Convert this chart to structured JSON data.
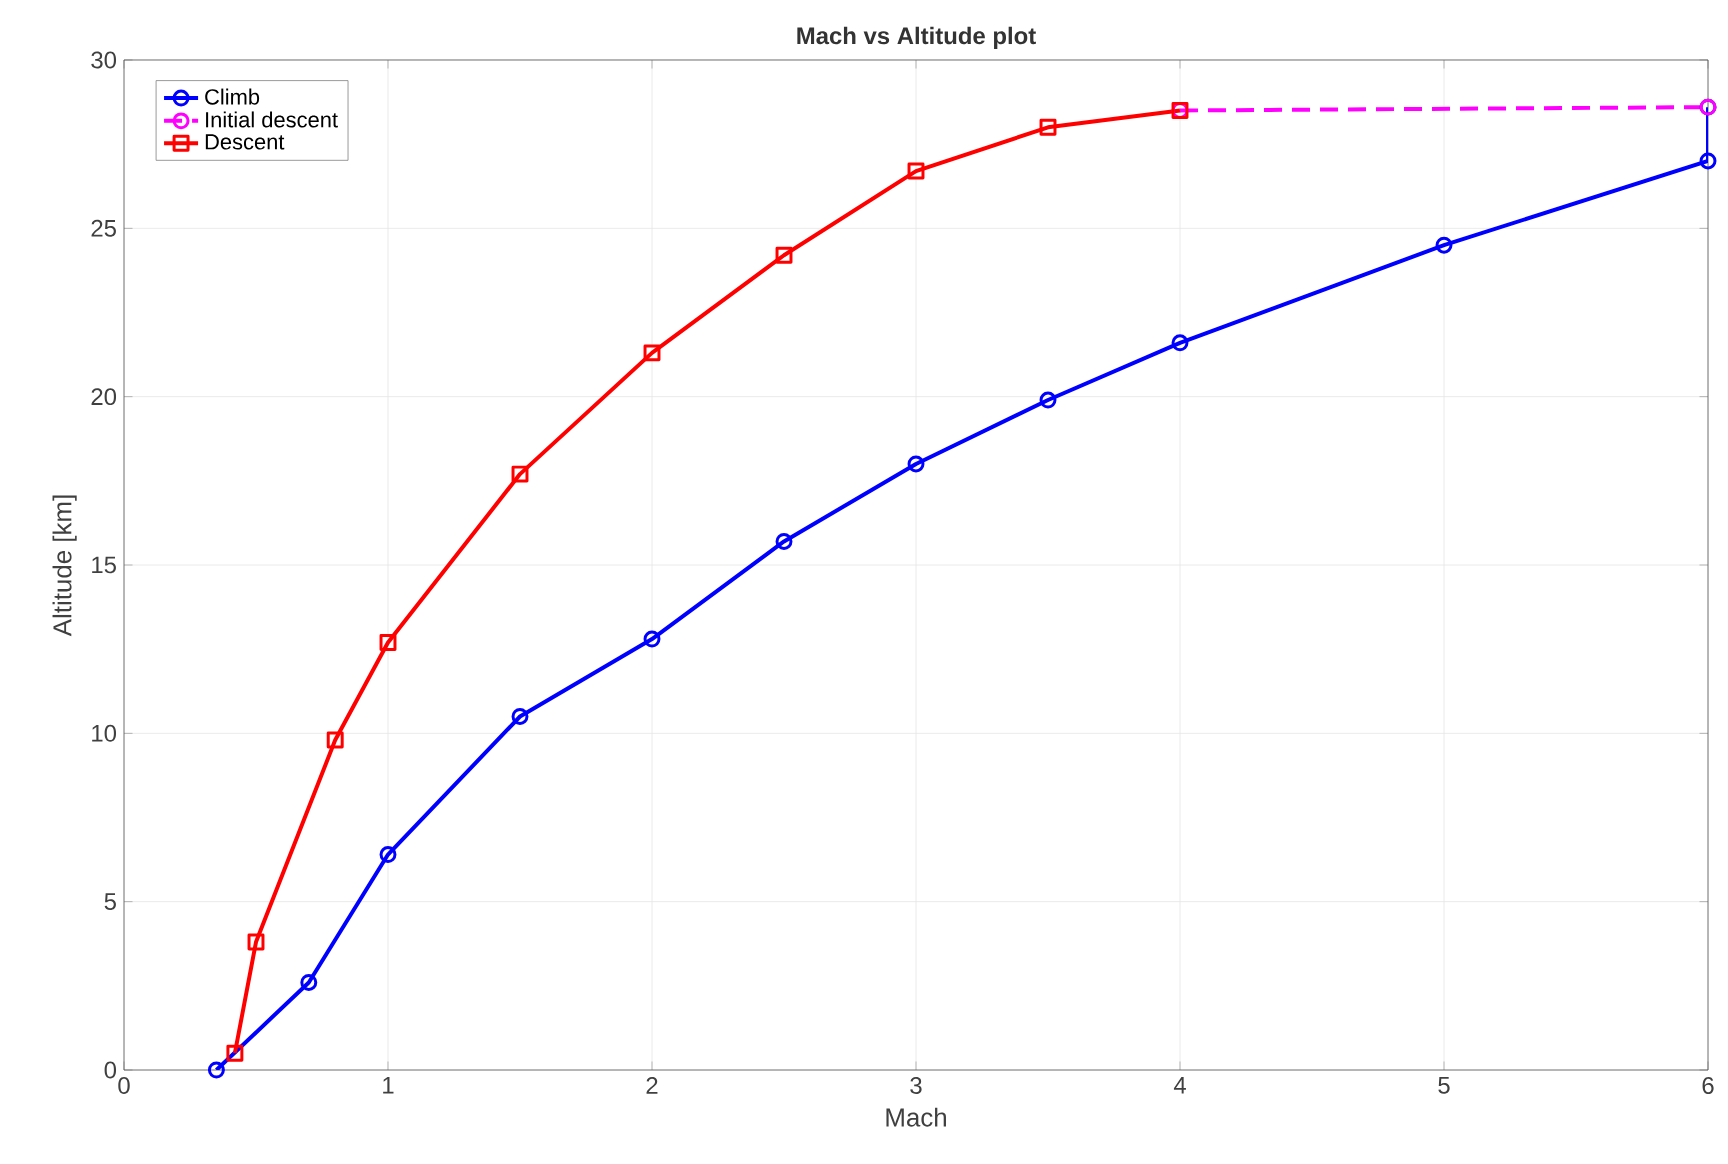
{
  "chart_data": {
    "type": "line",
    "title": "Mach vs Altitude plot",
    "xlabel": "Mach",
    "ylabel": "Altitude [km]",
    "xlim": [
      0,
      6
    ],
    "ylim": [
      0,
      30
    ],
    "xticks": [
      0,
      1,
      2,
      3,
      4,
      5,
      6
    ],
    "yticks": [
      0,
      5,
      10,
      15,
      20,
      25,
      30
    ],
    "grid": true,
    "legend": "top left",
    "series": [
      {
        "name": "Climb",
        "color": "#0000ff",
        "marker": "circle",
        "line_style": "solid",
        "x": [
          0.35,
          0.7,
          1,
          1.5,
          2,
          2.5,
          3,
          3.5,
          4,
          5,
          6,
          6
        ],
        "values": [
          0,
          2.6,
          6.4,
          10.5,
          12.8,
          15.7,
          18,
          19.9,
          21.6,
          24.5,
          27,
          28.6
        ]
      },
      {
        "name": "Initial descent",
        "color": "#ff00ff",
        "marker": "circle",
        "line_style": "dashed",
        "x": [
          4,
          6
        ],
        "values": [
          28.5,
          28.6
        ]
      },
      {
        "name": "Descent",
        "color": "#ff0000",
        "marker": "square",
        "line_style": "solid",
        "x": [
          0.42,
          0.5,
          0.8,
          1,
          1.5,
          2,
          2.5,
          3,
          3.5,
          4
        ],
        "values": [
          0.5,
          3.8,
          9.8,
          12.7,
          17.7,
          21.3,
          24.2,
          26.7,
          28,
          28.5
        ]
      }
    ]
  }
}
